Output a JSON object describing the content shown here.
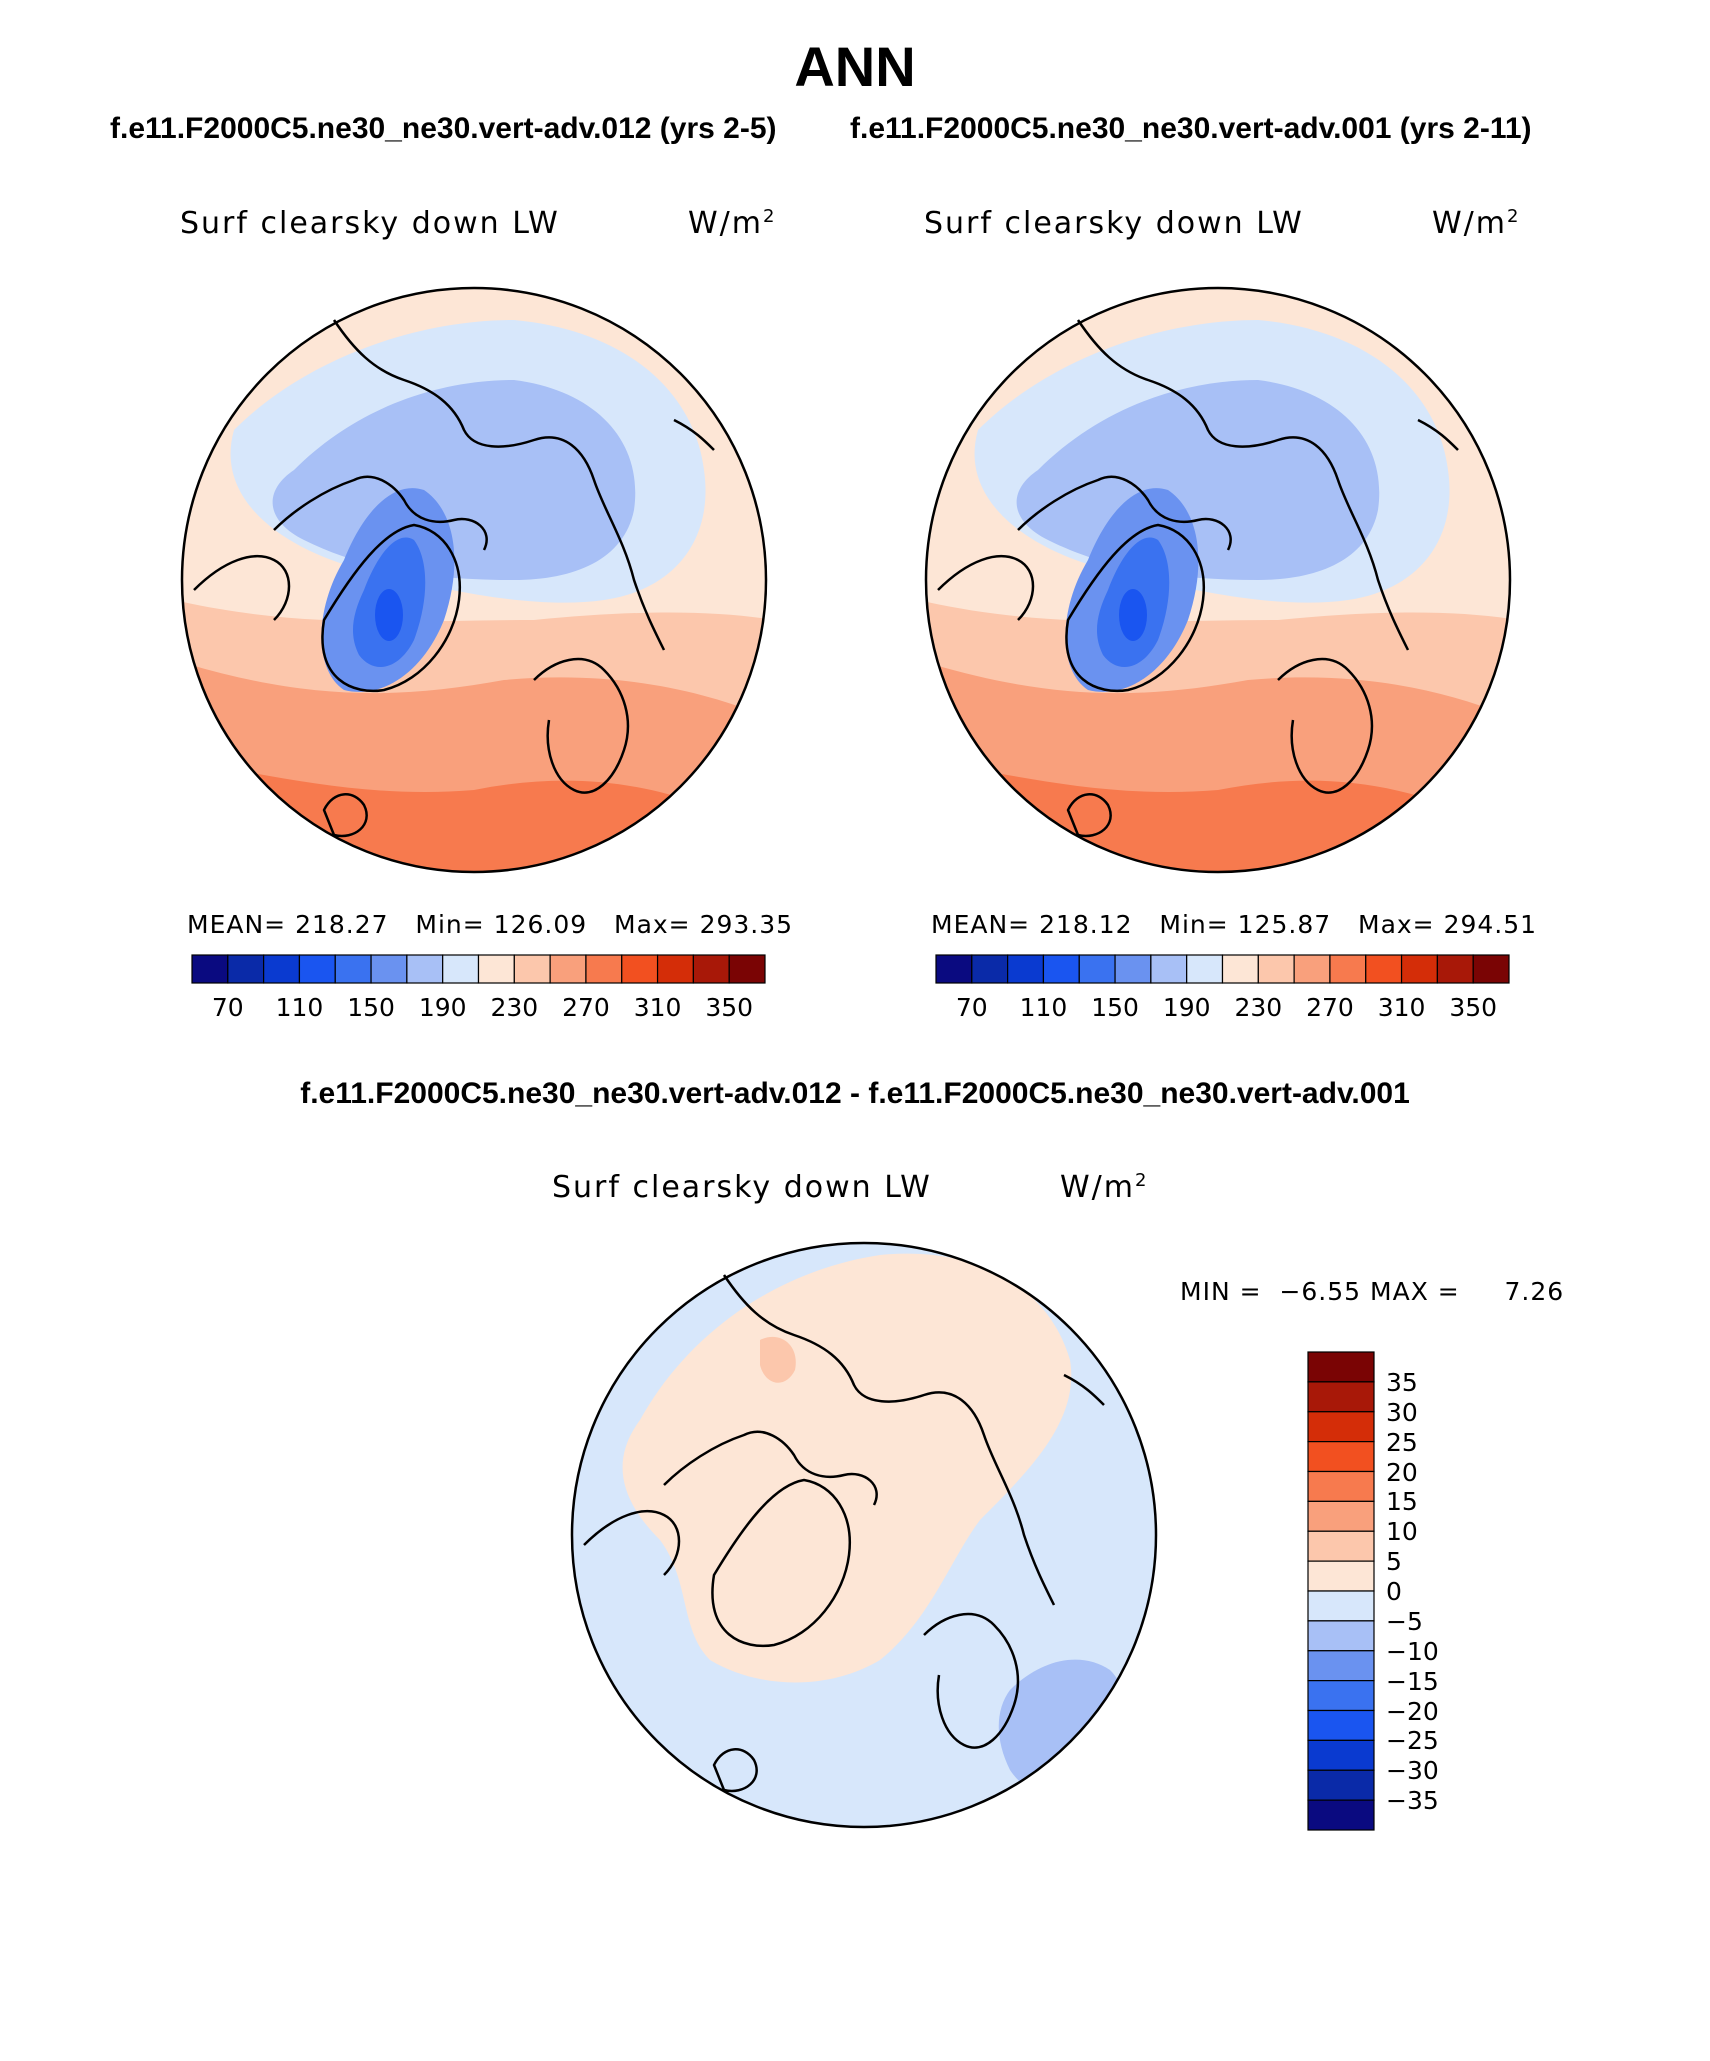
{
  "header": {
    "title": "ANN",
    "case_left": "f.e11.F2000C5.ne30_ne30.vert-adv.012 (yrs 2-5)",
    "case_right": "f.e11.F2000C5.ne30_ne30.vert-adv.001 (yrs 2-11)",
    "diff_title": "f.e11.F2000C5.ne30_ne30.vert-adv.012 - f.e11.F2000C5.ne30_ne30.vert-adv.001"
  },
  "panels": [
    {
      "variable": "Surf clearsky down LW",
      "units": "W/m",
      "units_exp": "2",
      "mean_label": "MEAN=",
      "mean": "218.27",
      "min_label": "Min=",
      "min": "126.09",
      "max_label": "Max=",
      "max": "293.35"
    },
    {
      "variable": "Surf clearsky down LW",
      "units": "W/m",
      "units_exp": "2",
      "mean_label": "MEAN=",
      "mean": "218.12",
      "min_label": "Min=",
      "min": "125.87",
      "max_label": "Max=",
      "max": "294.51"
    }
  ],
  "diff_panel": {
    "variable": "Surf clearsky down LW",
    "units": "W/m",
    "units_exp": "2",
    "min_label": "MIN =",
    "min": "−6.55",
    "max_label": "MAX =",
    "max": "7.26"
  },
  "colorbar_abs": {
    "labels": [
      "70",
      "110",
      "150",
      "190",
      "230",
      "270",
      "310",
      "350"
    ],
    "colors": [
      "#0a0a80",
      "#0a2aa8",
      "#0a3ad0",
      "#1a55f0",
      "#3a72f0",
      "#6a92f0",
      "#a8c0f6",
      "#d7e7fb",
      "#fde6d6",
      "#fcc7ac",
      "#f9a07c",
      "#f77a4e",
      "#f25020",
      "#d42d08",
      "#a81808",
      "#7a0404"
    ]
  },
  "colorbar_diff": {
    "labels": [
      "35",
      "30",
      "25",
      "20",
      "15",
      "10",
      "5",
      "0",
      "−5",
      "−10",
      "−15",
      "−20",
      "−25",
      "−30",
      "−35"
    ],
    "colors": [
      "#7a0404",
      "#a81808",
      "#d42d08",
      "#f25020",
      "#f77a4e",
      "#f9a07c",
      "#fcc7ac",
      "#fde6d6",
      "#d7e7fb",
      "#a8c0f6",
      "#6a92f0",
      "#3a72f0",
      "#1a55f0",
      "#0a3ad0",
      "#0a2aa8",
      "#0a0a80"
    ]
  }
}
